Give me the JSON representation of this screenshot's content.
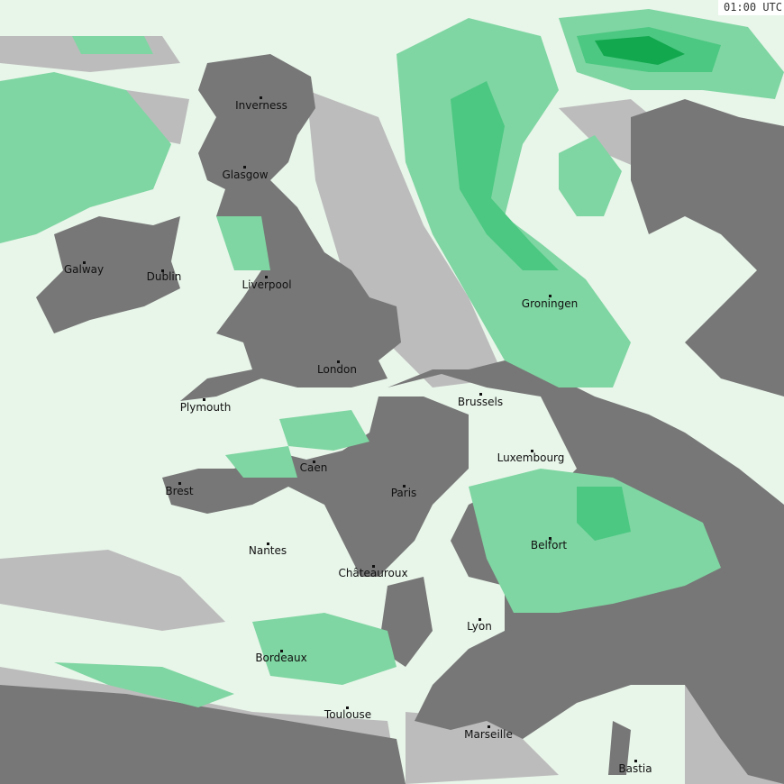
{
  "timestamp": "01:00 UTC",
  "colors": {
    "sea": "#e8f5e9",
    "land": "#777777",
    "cloud": "#bcbcbc",
    "rain_light": "#7fd6a2",
    "rain_medium": "#4cc882",
    "rain_heavy": "#12a84e",
    "border": "#6a5a6a"
  },
  "cities": [
    {
      "name": "Inverness"
    },
    {
      "name": "Glasgow"
    },
    {
      "name": "Galway"
    },
    {
      "name": "Dublin"
    },
    {
      "name": "Liverpool"
    },
    {
      "name": "London"
    },
    {
      "name": "Plymouth"
    },
    {
      "name": "Groningen"
    },
    {
      "name": "Brussels"
    },
    {
      "name": "Luxembourg"
    },
    {
      "name": "Caen"
    },
    {
      "name": "Brest"
    },
    {
      "name": "Paris"
    },
    {
      "name": "Belfort"
    },
    {
      "name": "Nantes"
    },
    {
      "name": "Châteauroux"
    },
    {
      "name": "Lyon"
    },
    {
      "name": "Bordeaux"
    },
    {
      "name": "Toulouse"
    },
    {
      "name": "Marseille"
    },
    {
      "name": "Bastia"
    }
  ]
}
